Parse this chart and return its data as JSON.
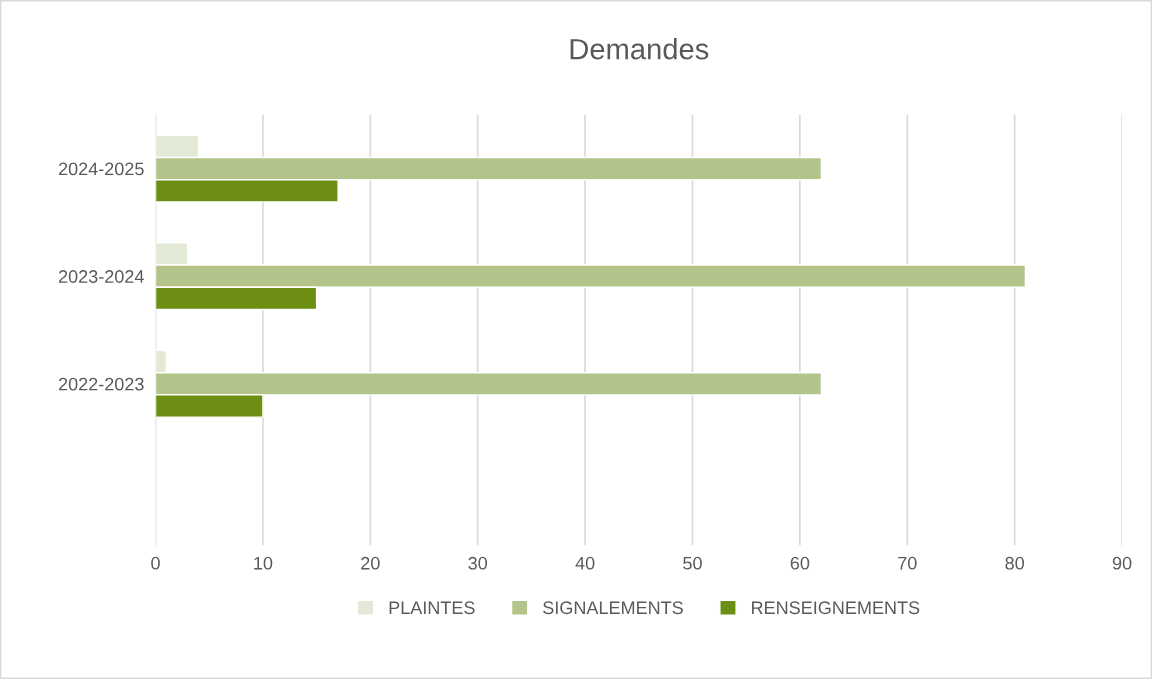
{
  "chart_data": {
    "type": "bar",
    "orientation": "horizontal",
    "title": "Demandes",
    "categories": [
      "2024-2025",
      "2023-2024",
      "2022-2023",
      null
    ],
    "series": [
      {
        "name": "PLAINTES",
        "color": "#e2e9d4",
        "values": [
          4,
          3,
          1,
          null
        ]
      },
      {
        "name": "SIGNALEMENTS",
        "color": "#b3c48a",
        "values": [
          62,
          81,
          62,
          null
        ]
      },
      {
        "name": "RENSEIGNEMENTS",
        "color": "#6b8e13",
        "values": [
          17,
          15,
          10,
          null
        ]
      }
    ],
    "xlim": [
      0,
      90
    ],
    "xticks": [
      0,
      10,
      20,
      30,
      40,
      50,
      60,
      70,
      80,
      90
    ],
    "grid": "x",
    "legend": "bottom"
  }
}
